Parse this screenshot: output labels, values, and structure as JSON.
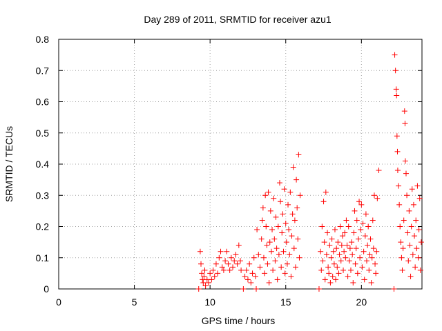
{
  "chart_data": {
    "type": "scatter",
    "title": "Day 289 of 2011, SRMTID for receiver azu1",
    "xlabel": "GPS time / hours",
    "ylabel": "SRMTID / TECUs",
    "xlim": [
      0,
      24
    ],
    "ylim": [
      0,
      0.8
    ],
    "xticks": [
      0,
      5,
      10,
      15,
      20
    ],
    "xtick_labels": [
      "0",
      "5",
      "10",
      "15",
      "20"
    ],
    "yticks": [
      0,
      0.1,
      0.2,
      0.3,
      0.4,
      0.5,
      0.6,
      0.7,
      0.8
    ],
    "ytick_labels": [
      "0",
      "0.1",
      "0.2",
      "0.3",
      "0.4",
      "0.5",
      "0.6",
      "0.7",
      "0.8"
    ],
    "grid": true,
    "marker": "+",
    "color": "#ff0000",
    "series": [
      {
        "name": "azu1",
        "points": [
          [
            9.25,
            0.0
          ],
          [
            9.35,
            0.12
          ],
          [
            9.4,
            0.08
          ],
          [
            9.45,
            0.05
          ],
          [
            9.5,
            0.03
          ],
          [
            9.55,
            0.02
          ],
          [
            9.6,
            0.04
          ],
          [
            9.65,
            0.06
          ],
          [
            9.7,
            0.01
          ],
          [
            9.8,
            0.03
          ],
          [
            9.9,
            0.02
          ],
          [
            10.0,
            0.05
          ],
          [
            10.1,
            0.03
          ],
          [
            10.2,
            0.06
          ],
          [
            10.3,
            0.04
          ],
          [
            10.4,
            0.08
          ],
          [
            10.5,
            0.05
          ],
          [
            10.6,
            0.1
          ],
          [
            10.7,
            0.12
          ],
          [
            10.8,
            0.07
          ],
          [
            10.9,
            0.06
          ],
          [
            11.0,
            0.09
          ],
          [
            11.1,
            0.12
          ],
          [
            11.2,
            0.08
          ],
          [
            11.3,
            0.06
          ],
          [
            11.4,
            0.1
          ],
          [
            11.5,
            0.07
          ],
          [
            11.6,
            0.09
          ],
          [
            11.7,
            0.11
          ],
          [
            11.8,
            0.08
          ],
          [
            11.9,
            0.14
          ],
          [
            12.0,
            0.09
          ],
          [
            12.05,
            0.06
          ],
          [
            12.2,
            0.0
          ],
          [
            12.3,
            0.04
          ],
          [
            12.4,
            0.06
          ],
          [
            12.5,
            0.03
          ],
          [
            12.6,
            0.08
          ],
          [
            12.7,
            0.02
          ],
          [
            12.8,
            0.05
          ],
          [
            12.9,
            0.1
          ],
          [
            13.0,
            0.04
          ],
          [
            13.05,
            0.0
          ],
          [
            13.1,
            0.19
          ],
          [
            13.2,
            0.11
          ],
          [
            13.3,
            0.07
          ],
          [
            13.4,
            0.16
          ],
          [
            13.45,
            0.22
          ],
          [
            13.5,
            0.26
          ],
          [
            13.55,
            0.1
          ],
          [
            13.6,
            0.05
          ],
          [
            13.65,
            0.3
          ],
          [
            13.7,
            0.2
          ],
          [
            13.75,
            0.14
          ],
          [
            13.8,
            0.08
          ],
          [
            13.85,
            0.31
          ],
          [
            13.9,
            0.02
          ],
          [
            13.95,
            0.15
          ],
          [
            14.0,
            0.25
          ],
          [
            14.05,
            0.12
          ],
          [
            14.1,
            0.19
          ],
          [
            14.15,
            0.06
          ],
          [
            14.2,
            0.29
          ],
          [
            14.25,
            0.16
          ],
          [
            14.3,
            0.09
          ],
          [
            14.35,
            0.23
          ],
          [
            14.4,
            0.13
          ],
          [
            14.45,
            0.03
          ],
          [
            14.5,
            0.2
          ],
          [
            14.55,
            0.11
          ],
          [
            14.6,
            0.34
          ],
          [
            14.65,
            0.28
          ],
          [
            14.7,
            0.07
          ],
          [
            14.75,
            0.18
          ],
          [
            14.8,
            0.24
          ],
          [
            14.85,
            0.12
          ],
          [
            14.9,
            0.32
          ],
          [
            14.95,
            0.05
          ],
          [
            15.0,
            0.21
          ],
          [
            15.05,
            0.15
          ],
          [
            15.1,
            0.08
          ],
          [
            15.15,
            0.27
          ],
          [
            15.2,
            0.19
          ],
          [
            15.25,
            0.11
          ],
          [
            15.3,
            0.31
          ],
          [
            15.35,
            0.04
          ],
          [
            15.4,
            0.17
          ],
          [
            15.45,
            0.24
          ],
          [
            15.5,
            0.39
          ],
          [
            15.55,
            0.13
          ],
          [
            15.6,
            0.22
          ],
          [
            15.65,
            0.07
          ],
          [
            15.7,
            0.35
          ],
          [
            15.75,
            0.26
          ],
          [
            15.8,
            0.16
          ],
          [
            15.85,
            0.43
          ],
          [
            15.9,
            0.1
          ],
          [
            15.95,
            0.3
          ],
          [
            17.2,
            0.0
          ],
          [
            17.3,
            0.12
          ],
          [
            17.35,
            0.06
          ],
          [
            17.4,
            0.2
          ],
          [
            17.45,
            0.09
          ],
          [
            17.5,
            0.28
          ],
          [
            17.55,
            0.15
          ],
          [
            17.6,
            0.03
          ],
          [
            17.65,
            0.31
          ],
          [
            17.7,
            0.11
          ],
          [
            17.75,
            0.18
          ],
          [
            17.8,
            0.07
          ],
          [
            17.85,
            0.05
          ],
          [
            17.9,
            0.14
          ],
          [
            17.95,
            0.02
          ],
          [
            18.0,
            0.1
          ],
          [
            18.05,
            0.16
          ],
          [
            18.1,
            0.04
          ],
          [
            18.15,
            0.12
          ],
          [
            18.2,
            0.08
          ],
          [
            18.25,
            0.19
          ],
          [
            18.3,
            0.03
          ],
          [
            18.35,
            0.13
          ],
          [
            18.4,
            0.07
          ],
          [
            18.45,
            0.15
          ],
          [
            18.5,
            0.05
          ],
          [
            18.55,
            0.11
          ],
          [
            18.6,
            0.2
          ],
          [
            18.65,
            0.09
          ],
          [
            18.7,
            0.14
          ],
          [
            18.75,
            0.17
          ],
          [
            18.8,
            0.06
          ],
          [
            18.85,
            0.12
          ],
          [
            18.9,
            0.18
          ],
          [
            18.95,
            0.1
          ],
          [
            19.0,
            0.22
          ],
          [
            19.05,
            0.14
          ],
          [
            19.1,
            0.04
          ],
          [
            19.15,
            0.2
          ],
          [
            19.2,
            0.09
          ],
          [
            19.25,
            0.13
          ],
          [
            19.3,
            0.06
          ],
          [
            19.35,
            0.15
          ],
          [
            19.4,
            0.11
          ],
          [
            19.45,
            0.02
          ],
          [
            19.5,
            0.18
          ],
          [
            19.55,
            0.25
          ],
          [
            19.6,
            0.08
          ],
          [
            19.65,
            0.13
          ],
          [
            19.7,
            0.22
          ],
          [
            19.75,
            0.05
          ],
          [
            19.8,
            0.16
          ],
          [
            19.85,
            0.28
          ],
          [
            19.9,
            0.1
          ],
          [
            19.95,
            0.19
          ],
          [
            20.0,
            0.27
          ],
          [
            20.05,
            0.07
          ],
          [
            20.1,
            0.21
          ],
          [
            20.15,
            0.12
          ],
          [
            20.2,
            0.03
          ],
          [
            20.25,
            0.17
          ],
          [
            20.3,
            0.24
          ],
          [
            20.35,
            0.09
          ],
          [
            20.4,
            0.14
          ],
          [
            20.45,
            0.2
          ],
          [
            20.5,
            0.06
          ],
          [
            20.55,
            0.11
          ],
          [
            20.6,
            0.16
          ],
          [
            20.65,
            0.02
          ],
          [
            20.7,
            0.1
          ],
          [
            20.75,
            0.22
          ],
          [
            20.8,
            0.13
          ],
          [
            20.85,
            0.3
          ],
          [
            20.9,
            0.08
          ],
          [
            20.95,
            0.05
          ],
          [
            21.0,
            0.12
          ],
          [
            21.05,
            0.29
          ],
          [
            21.15,
            0.38
          ],
          [
            22.15,
            0.0
          ],
          [
            22.2,
            0.75
          ],
          [
            22.25,
            0.7
          ],
          [
            22.3,
            0.64
          ],
          [
            22.32,
            0.62
          ],
          [
            22.35,
            0.49
          ],
          [
            22.38,
            0.44
          ],
          [
            22.4,
            0.38
          ],
          [
            22.45,
            0.33
          ],
          [
            22.5,
            0.27
          ],
          [
            22.55,
            0.2
          ],
          [
            22.6,
            0.15
          ],
          [
            22.65,
            0.1
          ],
          [
            22.7,
            0.06
          ],
          [
            22.75,
            0.13
          ],
          [
            22.8,
            0.22
          ],
          [
            22.85,
            0.57
          ],
          [
            22.88,
            0.53
          ],
          [
            22.9,
            0.41
          ],
          [
            22.95,
            0.37
          ],
          [
            23.0,
            0.3
          ],
          [
            23.05,
            0.18
          ],
          [
            23.1,
            0.09
          ],
          [
            23.15,
            0.25
          ],
          [
            23.2,
            0.14
          ],
          [
            23.25,
            0.04
          ],
          [
            23.3,
            0.2
          ],
          [
            23.35,
            0.32
          ],
          [
            23.4,
            0.11
          ],
          [
            23.45,
            0.27
          ],
          [
            23.5,
            0.17
          ],
          [
            23.55,
            0.07
          ],
          [
            23.6,
            0.22
          ],
          [
            23.65,
            0.13
          ],
          [
            23.7,
            0.33
          ],
          [
            23.75,
            0.1
          ],
          [
            23.8,
            0.19
          ],
          [
            23.85,
            0.29
          ],
          [
            23.9,
            0.06
          ],
          [
            23.95,
            0.15
          ]
        ]
      }
    ]
  }
}
